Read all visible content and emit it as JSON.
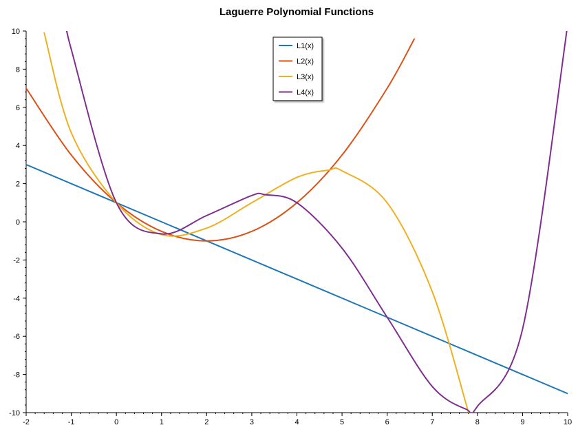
{
  "chart_data": {
    "type": "line",
    "title": "Laguerre Polynomial Functions",
    "xlabel": "",
    "ylabel": "",
    "xlim": [
      -2,
      10
    ],
    "ylim": [
      -10,
      10
    ],
    "x_ticks": [
      -2,
      -1,
      0,
      1,
      2,
      3,
      4,
      5,
      6,
      7,
      8,
      9,
      10
    ],
    "y_ticks": [
      -10,
      -8,
      -6,
      -4,
      -2,
      0,
      2,
      4,
      6,
      8,
      10
    ],
    "grid": false,
    "legend_position": "top-center",
    "series": [
      {
        "name": "L1(x)",
        "color": "#1f77b4",
        "order": 1,
        "x": [
          -2,
          0,
          2,
          4,
          6,
          8,
          10
        ],
        "y": [
          3,
          1,
          -1,
          -3,
          -5,
          -7,
          -9
        ]
      },
      {
        "name": "L2(x)",
        "color": "#d95319",
        "order": 2,
        "x": [
          -2,
          -1,
          0,
          1,
          2,
          3,
          4,
          5,
          6,
          6.6
        ],
        "y": [
          7,
          3.5,
          1,
          -0.5,
          -1,
          -0.5,
          1,
          3.5,
          7,
          9.58
        ]
      },
      {
        "name": "L3(x)",
        "color": "#edb120",
        "order": 3,
        "x": [
          -1.6,
          -1,
          0,
          1,
          2,
          3,
          4,
          4.7,
          5,
          6,
          7,
          7.8
        ],
        "y": [
          9.9,
          4.67,
          1,
          -0.67,
          -0.33,
          1,
          2.33,
          2.71,
          2.67,
          1,
          -3.67,
          -9.97
        ]
      },
      {
        "name": "L4(x)",
        "color": "#7e2f8e",
        "order": 4,
        "x": [
          -1.1,
          -1,
          0,
          1,
          2,
          3,
          3.3,
          4,
          5,
          6,
          7,
          7.75,
          8,
          9,
          10
        ],
        "y": [
          10.38,
          9.04,
          1,
          -0.63,
          0.33,
          1.38,
          1.42,
          1,
          -1.38,
          -5,
          -8.63,
          -9.82,
          -9.67,
          -5.62,
          10.33
        ]
      }
    ]
  }
}
